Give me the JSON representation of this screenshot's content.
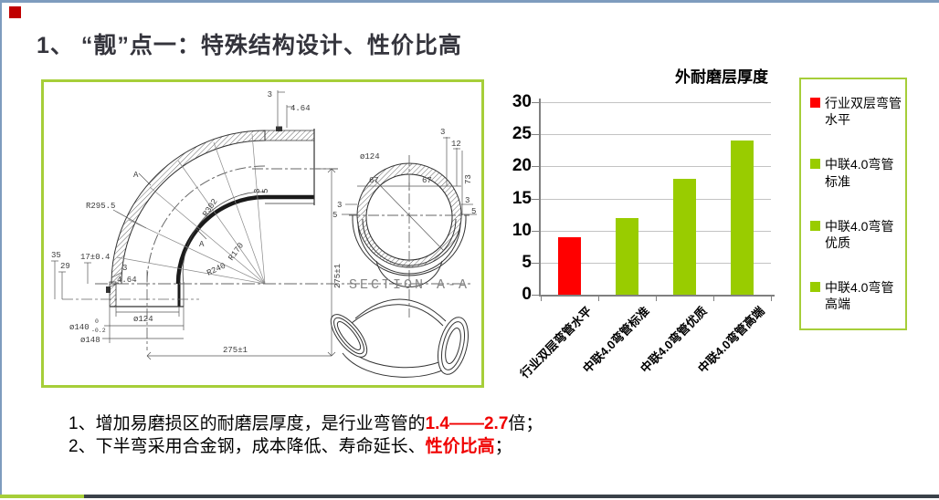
{
  "frame": {
    "top_color": "#7e9cbe",
    "footer_green": "#a6ce39",
    "footer_dark": "#3a4149",
    "bullet_color": "#c00000"
  },
  "header": {
    "title": "1、 “靓”点一：特殊结构设计、性价比高"
  },
  "chart_data": {
    "type": "bar",
    "title": "外耐磨层厚度",
    "categories": [
      "行业双层弯管水平",
      "中联4.0弯管标准",
      "中联4.0弯管优质",
      "中联4.0弯管高端"
    ],
    "values": [
      9,
      12,
      18,
      24
    ],
    "bar_colors": [
      "#ff0000",
      "#99cc00",
      "#99cc00",
      "#99cc00"
    ],
    "xlabel": "",
    "ylabel": "",
    "ylim": [
      0,
      30
    ],
    "ytick_step": 5,
    "grid": true,
    "legend_position": "right",
    "legend": [
      {
        "label": "行业双层弯管水平",
        "color": "#ff0000"
      },
      {
        "label": "中联4.0弯管标准",
        "color": "#99cc00"
      },
      {
        "label": "中联4.0弯管优质",
        "color": "#99cc00"
      },
      {
        "label": "中联4.0弯管高端",
        "color": "#99cc00"
      }
    ]
  },
  "notes": [
    {
      "pre": "1、增加易磨损区的耐磨层厚度，是行业弯管的",
      "hl": "1.4——2.7",
      "post": "倍；"
    },
    {
      "pre": "2、下半弯采用合金钢，成本降低、寿命延长、",
      "hl": "性价比高",
      "post": "；"
    }
  ],
  "drawing": {
    "section_caption": "SECTION A-A",
    "labels": {
      "a1": "A",
      "a2": "A",
      "r2955": "R295.5",
      "r302": "R302",
      "r240": "R240",
      "r170": "R170",
      "top3": "3",
      "top464": "4.64",
      "v275": "275±1",
      "h275": "275±1",
      "d35": "35",
      "d29": "29",
      "d17": "17±0.4",
      "l3": "3",
      "l464": "4.64",
      "s3a": "3",
      "s5a": "5",
      "phi124": "ø124",
      "phi140": "ø140",
      "tolup": "0",
      "toldn": "-0.2",
      "phi148": "ø148",
      "sec_phi124": "ø124",
      "sec67l": "67",
      "sec67r": "67",
      "sec3": "3",
      "sec12": "12",
      "sec73": "73",
      "sec3l": "3",
      "sec5l": "5",
      "sec3r": "3",
      "sec5r": "5"
    }
  }
}
